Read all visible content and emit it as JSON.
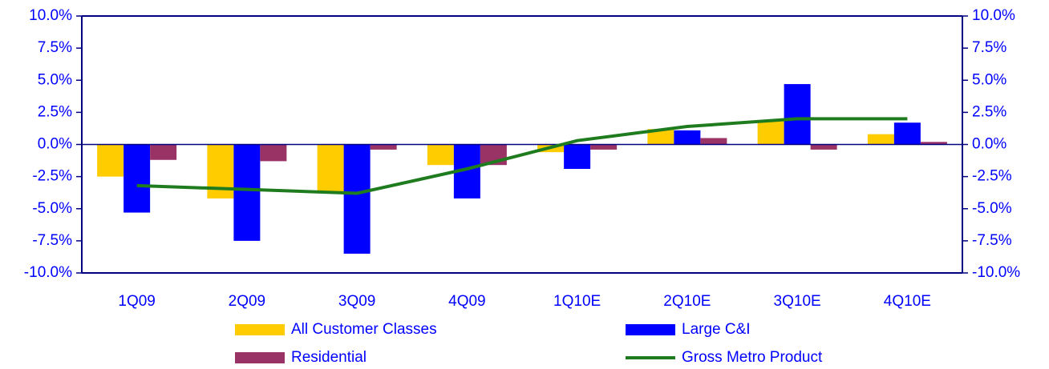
{
  "chart_data": {
    "type": "bar",
    "categories": [
      "1Q09",
      "2Q09",
      "3Q09",
      "4Q09",
      "1Q10E",
      "2Q10E",
      "3Q10E",
      "4Q10E"
    ],
    "series": [
      {
        "name": "All Customer Classes",
        "type": "bar",
        "color": "#FFCC00",
        "values": [
          -2.5,
          -4.2,
          -3.8,
          -1.6,
          -0.6,
          1.2,
          1.8,
          0.8
        ]
      },
      {
        "name": "Large C&I",
        "type": "bar",
        "color": "#0000FF",
        "values": [
          -5.3,
          -7.5,
          -8.5,
          -4.2,
          -1.9,
          1.1,
          4.7,
          1.7
        ]
      },
      {
        "name": "Residential",
        "type": "bar",
        "color": "#993366",
        "values": [
          -1.2,
          -1.3,
          -0.4,
          -1.6,
          -0.4,
          0.5,
          -0.4,
          0.2
        ]
      },
      {
        "name": "Gross Metro Product",
        "type": "line",
        "axis": "y2",
        "color": "#1E7B1E",
        "values": [
          -3.2,
          -3.5,
          -3.8,
          -1.9,
          0.3,
          1.4,
          2.0,
          2.0
        ]
      }
    ],
    "ylim": [
      -10,
      10
    ],
    "yticks": [
      {
        "value": -10,
        "label": "-10.0%"
      },
      {
        "value": -7.5,
        "label": "-7.5%"
      },
      {
        "value": -5,
        "label": "-5.0%"
      },
      {
        "value": -2.5,
        "label": "-2.5%"
      },
      {
        "value": 0,
        "label": "0.0%"
      },
      {
        "value": 2.5,
        "label": "2.5%"
      },
      {
        "value": 5,
        "label": "5.0%"
      },
      {
        "value": 7.5,
        "label": "7.5%"
      },
      {
        "value": 10,
        "label": "10.0%"
      }
    ],
    "y2lim": [
      -10,
      10
    ],
    "y2ticks": [
      {
        "value": -10,
        "label": "-10.0%"
      },
      {
        "value": -7.5,
        "label": "-7.5%"
      },
      {
        "value": -5,
        "label": "-5.0%"
      },
      {
        "value": -2.5,
        "label": "-2.5%"
      },
      {
        "value": 0,
        "label": "0.0%"
      },
      {
        "value": 2.5,
        "label": "2.5%"
      },
      {
        "value": 5,
        "label": "5.0%"
      },
      {
        "value": 7.5,
        "label": "7.5%"
      },
      {
        "value": 10,
        "label": "10.0%"
      }
    ],
    "grid": false
  }
}
